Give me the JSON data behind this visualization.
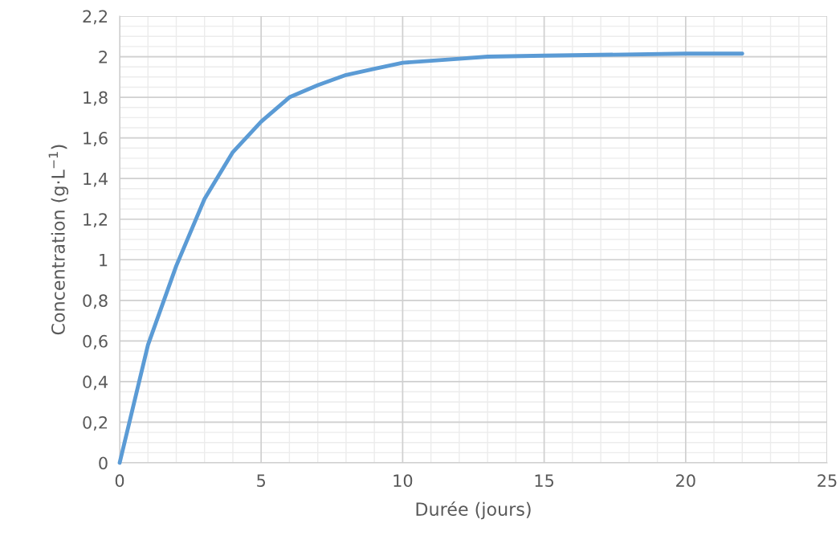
{
  "chart_data": {
    "type": "line",
    "xlabel": "Durée (jours)",
    "ylabel": "Concentration (g·L$^{−1}$)",
    "x": [
      0,
      1,
      2,
      3,
      4,
      5,
      6,
      7,
      8,
      9,
      10,
      11,
      12,
      13,
      15,
      20,
      22
    ],
    "series": [
      {
        "color": "#5b9bd5",
        "values": [
          0,
          0.58,
          0.97,
          1.3,
          1.53,
          1.68,
          1.8,
          1.86,
          1.91,
          1.94,
          1.97,
          1.98,
          1.99,
          2.0,
          2.005,
          2.015,
          2.015
        ]
      }
    ],
    "xlim": [
      0,
      25
    ],
    "xticks": [
      0,
      5,
      10,
      15,
      20,
      25
    ],
    "ylim": [
      0,
      2.2
    ],
    "yticks": [
      0,
      {
        "value": 0.2,
        "label": "0,2"
      },
      {
        "value": 0.4,
        "label": "0,4"
      },
      {
        "value": 0.6,
        "label": "0,6"
      },
      {
        "value": 0.8,
        "label": "0,8"
      },
      1,
      {
        "value": 1.2,
        "label": "1,2"
      },
      {
        "value": 1.4,
        "label": "1,4"
      },
      {
        "value": 1.6,
        "label": "1,6"
      },
      {
        "value": 1.8,
        "label": "1,8"
      },
      2,
      {
        "value": 2.2,
        "label": "2,2"
      }
    ],
    "grid": true,
    "marker": "none",
    "line_style": "solid"
  }
}
